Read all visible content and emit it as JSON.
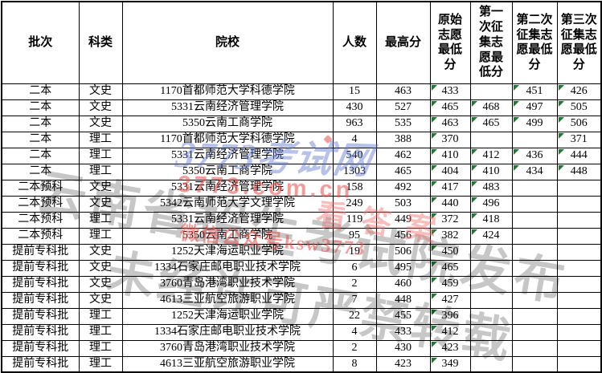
{
  "table": {
    "headers": [
      "批次",
      "科类",
      "院校",
      "人数",
      "最高分",
      "原始\n志愿\n最低\n分",
      "第一\n次征\n集志\n愿最\n低分",
      "第二次\n征集志\n愿最低\n分",
      "第三次\n征集志\n愿最低\n分"
    ],
    "rows": [
      [
        "二本",
        "文史",
        "1170首都师范大学科德学院",
        "15",
        "463",
        "433",
        "",
        "451",
        "426"
      ],
      [
        "二本",
        "文史",
        "5331云南经济管理学院",
        "430",
        "527",
        "465",
        "468",
        "497",
        "505"
      ],
      [
        "二本",
        "文史",
        "5350云南工商学院",
        "963",
        "535",
        "463",
        "465",
        "499",
        "506"
      ],
      [
        "二本",
        "理工",
        "1170首都师范大学科德学院",
        "4",
        "388",
        "370",
        "",
        "",
        "371"
      ],
      [
        "二本",
        "理工",
        "5331云南经济管理学院",
        "540",
        "462",
        "410",
        "412",
        "436",
        "444"
      ],
      [
        "二本",
        "理工",
        "5350云南工商学院",
        "1303",
        "465",
        "404",
        "410",
        "434",
        "448"
      ],
      [
        "二本预科",
        "文史",
        "5331云南经济管理学院",
        "158",
        "492",
        "417",
        "483",
        "",
        ""
      ],
      [
        "二本预科",
        "文史",
        "5342云南师范大学文理学院",
        "249",
        "503",
        "440",
        "496",
        "",
        ""
      ],
      [
        "二本预科",
        "理工",
        "5331云南经济管理学院",
        "119",
        "449",
        "372",
        "418",
        "",
        ""
      ],
      [
        "二本预科",
        "理工",
        "5350云南工商学院",
        "95",
        "456",
        "382",
        "424",
        "",
        ""
      ],
      [
        "提前专科批",
        "文史",
        "1252天津海运职业学院",
        "19",
        "506",
        "450",
        "",
        "",
        ""
      ],
      [
        "提前专科批",
        "文史",
        "1334石家庄邮电职业技术学院",
        "6",
        "495",
        "465",
        "",
        "",
        ""
      ],
      [
        "提前专科批",
        "文史",
        "3760青岛港湾职业技术学院",
        "2",
        "460",
        "459",
        "",
        "",
        ""
      ],
      [
        "提前专科批",
        "文史",
        "4613三亚航空旅游职业学院",
        "7",
        "448",
        "427",
        "",
        "",
        ""
      ],
      [
        "提前专科批",
        "理工",
        "1252天津海运职业学院",
        "22",
        "455",
        "396",
        "",
        "",
        ""
      ],
      [
        "提前专科批",
        "理工",
        "1334石家庄邮电职业技术学院",
        "4",
        "433",
        "412",
        "",
        "",
        ""
      ],
      [
        "提前专科批",
        "理工",
        "3760青岛港湾职业技术学院",
        "2",
        "430",
        "423",
        "",
        "",
        ""
      ],
      [
        "提前专科批",
        "理工",
        "4613三亚航空旅游职业学院",
        "8",
        "423",
        "349",
        "",
        "",
        ""
      ]
    ]
  },
  "watermarks": {
    "gray_line_1": "云南省招生考试院发布",
    "gray_line_2": "未经许可严禁转载",
    "blue_logo": "3773考试网",
    "red_url": "3773.com.cn",
    "red_answer": "看答案",
    "red_wechat": "微信公众号ksw3773"
  },
  "colors": {
    "triangle_green": "#1e7b2d",
    "watermark_gray": "rgba(0,0,0,0.22)",
    "watermark_blue": "rgba(95,120,210,0.45)",
    "watermark_red": "rgba(235,75,70,0.55)",
    "watermark_pink": "rgba(240,110,110,0.45)"
  }
}
